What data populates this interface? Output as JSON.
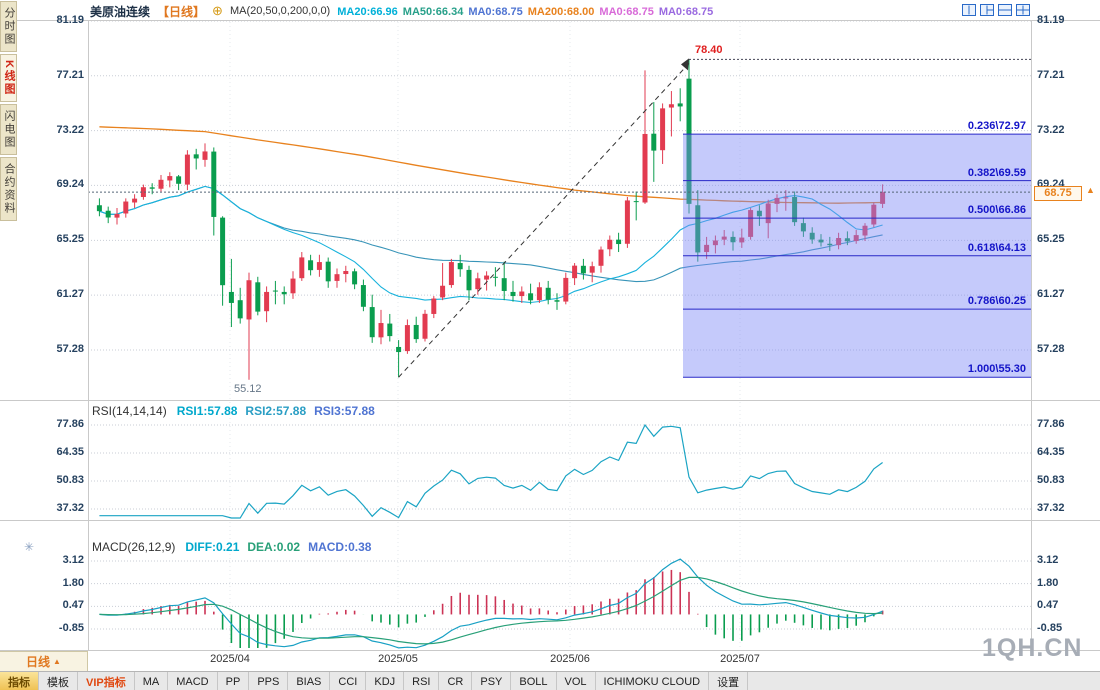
{
  "header": {
    "title": "美原油连续",
    "period": "【日线】",
    "settings_icon": "⊕",
    "ma_group": "MA(20,50,0,200,0,0)",
    "ma_values": [
      {
        "text": "MA20:66.96",
        "color": "#00b0d8"
      },
      {
        "text": "MA50:66.34",
        "color": "#28a08a"
      },
      {
        "text": "MA0:68.75",
        "color": "#4f74d2"
      },
      {
        "text": "MA200:68.00",
        "color": "#e8821e"
      },
      {
        "text": "MA0:68.75",
        "color": "#d86ad8"
      },
      {
        "text": "MA0:68.75",
        "color": "#9a6ae0"
      }
    ]
  },
  "layout_icons": [
    {
      "name": "layout-split-2-icon"
    },
    {
      "name": "layout-split-3-icon"
    },
    {
      "name": "layout-split-horizontal-icon"
    },
    {
      "name": "layout-grid-4-icon"
    }
  ],
  "sidebar": {
    "items": [
      {
        "key": "time-chart",
        "label": "分时图",
        "active": false
      },
      {
        "key": "kline-chart",
        "label": "K线图",
        "active": true
      },
      {
        "key": "flash-chart",
        "label": "闪电图",
        "active": false
      },
      {
        "key": "contract-info",
        "label": "合约资料",
        "active": false
      }
    ]
  },
  "watermark": "1QH.CN",
  "bottom": {
    "period": "日线",
    "arrow": "▲"
  },
  "toolbar": {
    "items": [
      {
        "key": "indicator",
        "label": "指标",
        "state": "active"
      },
      {
        "key": "template",
        "label": "模板"
      },
      {
        "key": "vip",
        "label": "VIP指标",
        "state": "vip"
      },
      {
        "key": "ma",
        "label": "MA"
      },
      {
        "key": "macd",
        "label": "MACD"
      },
      {
        "key": "pp",
        "label": "PP"
      },
      {
        "key": "pps",
        "label": "PPS"
      },
      {
        "key": "bias",
        "label": "BIAS"
      },
      {
        "key": "cci",
        "label": "CCI"
      },
      {
        "key": "kdj",
        "label": "KDJ"
      },
      {
        "key": "rsi",
        "label": "RSI"
      },
      {
        "key": "cr",
        "label": "CR"
      },
      {
        "key": "psy",
        "label": "PSY"
      },
      {
        "key": "boll",
        "label": "BOLL"
      },
      {
        "key": "vol",
        "label": "VOL"
      },
      {
        "key": "ichimoku",
        "label": "ICHIMOKU CLOUD"
      },
      {
        "key": "settings",
        "label": "设置"
      }
    ]
  },
  "colors": {
    "up": "#e23b50",
    "down": "#0a9d4e",
    "ma20": "#18b2dc",
    "ma50": "#3894b8",
    "ma200": "#e8821e",
    "fib_fill": "rgba(126,138,246,0.45)",
    "fib_line": "#2828c8",
    "rsi_line": "#1ba4c4",
    "macd_diff": "#18a0c4",
    "macd_dea": "#28a078",
    "hist_pos": "#cc3355",
    "hist_neg": "#0a9d4e",
    "trend": "#333333",
    "price_line": "#556677",
    "accent_orange": "#e8821e"
  },
  "chart_data": {
    "type": "candlestick",
    "title": "美原油连续 日线",
    "price_ticks": [
      "81.19",
      "77.21",
      "73.22",
      "69.24",
      "65.25",
      "61.27",
      "57.28"
    ],
    "x_labels": [
      "2025/04",
      "2025/05",
      "2025/06",
      "2025/07"
    ],
    "candles": [
      [
        67.8,
        68.3,
        67.0,
        67.37
      ],
      [
        67.4,
        67.7,
        66.5,
        66.91
      ],
      [
        66.9,
        67.6,
        66.4,
        67.16
      ],
      [
        67.2,
        68.3,
        66.9,
        68.07
      ],
      [
        68.0,
        68.6,
        67.6,
        68.28
      ],
      [
        68.4,
        69.3,
        68.2,
        69.11
      ],
      [
        69.1,
        69.4,
        68.6,
        69.0
      ],
      [
        69.0,
        70.0,
        68.8,
        69.65
      ],
      [
        69.6,
        70.2,
        69.1,
        69.92
      ],
      [
        69.9,
        70.0,
        68.9,
        69.36
      ],
      [
        69.3,
        71.8,
        68.9,
        71.48
      ],
      [
        71.5,
        71.9,
        70.4,
        71.2
      ],
      [
        71.1,
        72.3,
        70.6,
        71.71
      ],
      [
        71.7,
        72.0,
        65.6,
        66.95
      ],
      [
        66.9,
        67.0,
        60.5,
        61.99
      ],
      [
        61.5,
        63.9,
        58.95,
        60.7
      ],
      [
        60.9,
        61.8,
        59.2,
        59.58
      ],
      [
        59.5,
        62.9,
        55.12,
        62.35
      ],
      [
        62.2,
        62.6,
        59.8,
        60.07
      ],
      [
        60.1,
        61.9,
        59.3,
        61.5
      ],
      [
        61.6,
        62.3,
        60.6,
        61.53
      ],
      [
        61.5,
        61.9,
        60.6,
        61.33
      ],
      [
        61.4,
        63.0,
        61.0,
        62.47
      ],
      [
        62.5,
        64.4,
        62.3,
        64.01
      ],
      [
        63.8,
        64.2,
        62.7,
        63.08
      ],
      [
        63.1,
        64.2,
        62.6,
        63.67
      ],
      [
        63.7,
        64.0,
        61.8,
        62.27
      ],
      [
        62.3,
        63.2,
        61.8,
        62.79
      ],
      [
        62.8,
        63.4,
        62.2,
        63.02
      ],
      [
        63.0,
        63.2,
        61.7,
        62.05
      ],
      [
        62.0,
        62.4,
        60.1,
        60.42
      ],
      [
        60.4,
        61.3,
        57.8,
        58.21
      ],
      [
        58.2,
        60.2,
        57.7,
        59.24
      ],
      [
        59.2,
        59.9,
        57.9,
        58.29
      ],
      [
        57.5,
        58.0,
        55.3,
        57.13
      ],
      [
        57.2,
        59.5,
        57.0,
        59.09
      ],
      [
        59.1,
        59.7,
        57.8,
        58.07
      ],
      [
        58.1,
        60.2,
        57.9,
        59.91
      ],
      [
        59.9,
        61.2,
        59.6,
        61.02
      ],
      [
        61.1,
        63.6,
        60.9,
        61.95
      ],
      [
        62.0,
        63.9,
        61.8,
        63.67
      ],
      [
        63.6,
        64.2,
        62.6,
        63.15
      ],
      [
        63.1,
        63.4,
        60.9,
        61.62
      ],
      [
        61.7,
        62.9,
        61.3,
        62.49
      ],
      [
        62.4,
        63.0,
        61.6,
        62.69
      ],
      [
        62.6,
        63.3,
        61.9,
        62.56
      ],
      [
        62.5,
        63.7,
        60.9,
        61.57
      ],
      [
        61.5,
        62.3,
        60.8,
        61.2
      ],
      [
        61.2,
        61.9,
        60.7,
        61.53
      ],
      [
        61.4,
        62.1,
        60.6,
        60.89
      ],
      [
        60.9,
        62.2,
        60.7,
        61.84
      ],
      [
        61.8,
        62.3,
        60.6,
        60.94
      ],
      [
        60.9,
        61.4,
        60.2,
        60.79
      ],
      [
        60.8,
        62.9,
        60.6,
        62.52
      ],
      [
        62.5,
        63.6,
        62.0,
        63.41
      ],
      [
        63.4,
        63.9,
        62.4,
        62.85
      ],
      [
        62.9,
        63.7,
        62.2,
        63.37
      ],
      [
        63.4,
        64.8,
        62.9,
        64.58
      ],
      [
        64.6,
        65.6,
        64.1,
        65.29
      ],
      [
        65.3,
        65.8,
        64.4,
        64.98
      ],
      [
        65.0,
        68.4,
        64.7,
        68.15
      ],
      [
        68.1,
        68.8,
        66.7,
        68.04
      ],
      [
        68.0,
        77.6,
        67.9,
        72.98
      ],
      [
        73.0,
        75.3,
        69.5,
        71.77
      ],
      [
        71.8,
        75.2,
        70.8,
        74.84
      ],
      [
        74.9,
        76.1,
        72.8,
        75.14
      ],
      [
        75.2,
        76.3,
        73.9,
        74.98
      ],
      [
        77.0,
        78.4,
        67.2,
        67.9
      ],
      [
        67.8,
        68.9,
        63.7,
        64.37
      ],
      [
        64.4,
        65.5,
        63.9,
        64.92
      ],
      [
        64.9,
        65.6,
        64.3,
        65.24
      ],
      [
        65.3,
        66.0,
        64.9,
        65.52
      ],
      [
        65.5,
        65.9,
        64.5,
        65.11
      ],
      [
        65.1,
        66.1,
        64.7,
        65.45
      ],
      [
        65.5,
        67.6,
        65.3,
        67.45
      ],
      [
        67.4,
        67.8,
        66.3,
        67.0
      ],
      [
        66.5,
        68.2,
        65.4,
        67.93
      ],
      [
        67.9,
        68.6,
        67.3,
        68.33
      ],
      [
        68.3,
        68.9,
        67.4,
        68.38
      ],
      [
        68.4,
        68.8,
        66.3,
        66.57
      ],
      [
        66.5,
        66.9,
        65.5,
        65.9
      ],
      [
        65.8,
        66.2,
        65.0,
        65.31
      ],
      [
        65.3,
        65.7,
        64.8,
        65.1
      ],
      [
        65.0,
        65.5,
        64.48,
        64.9
      ],
      [
        64.9,
        65.8,
        64.6,
        65.42
      ],
      [
        65.4,
        65.9,
        64.9,
        65.18
      ],
      [
        65.2,
        66.0,
        65.0,
        65.63
      ],
      [
        65.6,
        66.5,
        65.2,
        66.31
      ],
      [
        66.4,
        68.0,
        66.2,
        67.84
      ],
      [
        67.9,
        69.32,
        67.6,
        68.75
      ]
    ],
    "ma200_points": [
      [
        0,
        73.5
      ],
      [
        6,
        73.35
      ],
      [
        12,
        73.15
      ],
      [
        18,
        72.55
      ],
      [
        24,
        72.0
      ],
      [
        30,
        71.4
      ],
      [
        36,
        70.7
      ],
      [
        42,
        70.05
      ],
      [
        48,
        69.45
      ],
      [
        54,
        68.9
      ],
      [
        60,
        68.5
      ],
      [
        66,
        68.25
      ],
      [
        72,
        68.1
      ],
      [
        78,
        68.0
      ],
      [
        84,
        67.95
      ],
      [
        89,
        68.0
      ]
    ],
    "fib": {
      "levels": [
        {
          "label": "0.236\\72.97",
          "price": 72.97
        },
        {
          "label": "0.382\\69.59",
          "price": 69.59
        },
        {
          "label": "0.500\\66.86",
          "price": 66.86
        },
        {
          "label": "0.618\\64.13",
          "price": 64.13
        },
        {
          "label": "0.786\\60.25",
          "price": 60.25
        },
        {
          "label": "1.000\\55.30",
          "price": 55.3
        }
      ]
    },
    "trendline": {
      "from_index": 34,
      "from_price": 55.3,
      "to_index": 67,
      "to_price": 78.4
    },
    "annotations": {
      "high": "78.40",
      "low": "55.12",
      "last": "68.75",
      "marker": "▲"
    },
    "rsi": {
      "title": "RSI(14,14,14)",
      "period": 14,
      "ticks": [
        "77.86",
        "64.35",
        "50.83",
        "37.32"
      ],
      "legend": [
        {
          "text": "RSI1:57.88",
          "color": "#00a8cc"
        },
        {
          "text": "RSI2:57.88",
          "color": "#2a9ec4"
        },
        {
          "text": "RSI3:57.88",
          "color": "#4f74d2"
        }
      ]
    },
    "macd": {
      "title": "MACD(26,12,9)",
      "fast": 12,
      "slow": 26,
      "signal": 9,
      "ticks": [
        "3.12",
        "1.80",
        "0.47",
        "-0.85"
      ],
      "legend": [
        {
          "text": "DIFF:0.21",
          "color": "#00a8cc"
        },
        {
          "text": "DEA:0.02",
          "color": "#28a078"
        },
        {
          "text": "MACD:0.38",
          "color": "#4f74d2"
        }
      ]
    }
  }
}
